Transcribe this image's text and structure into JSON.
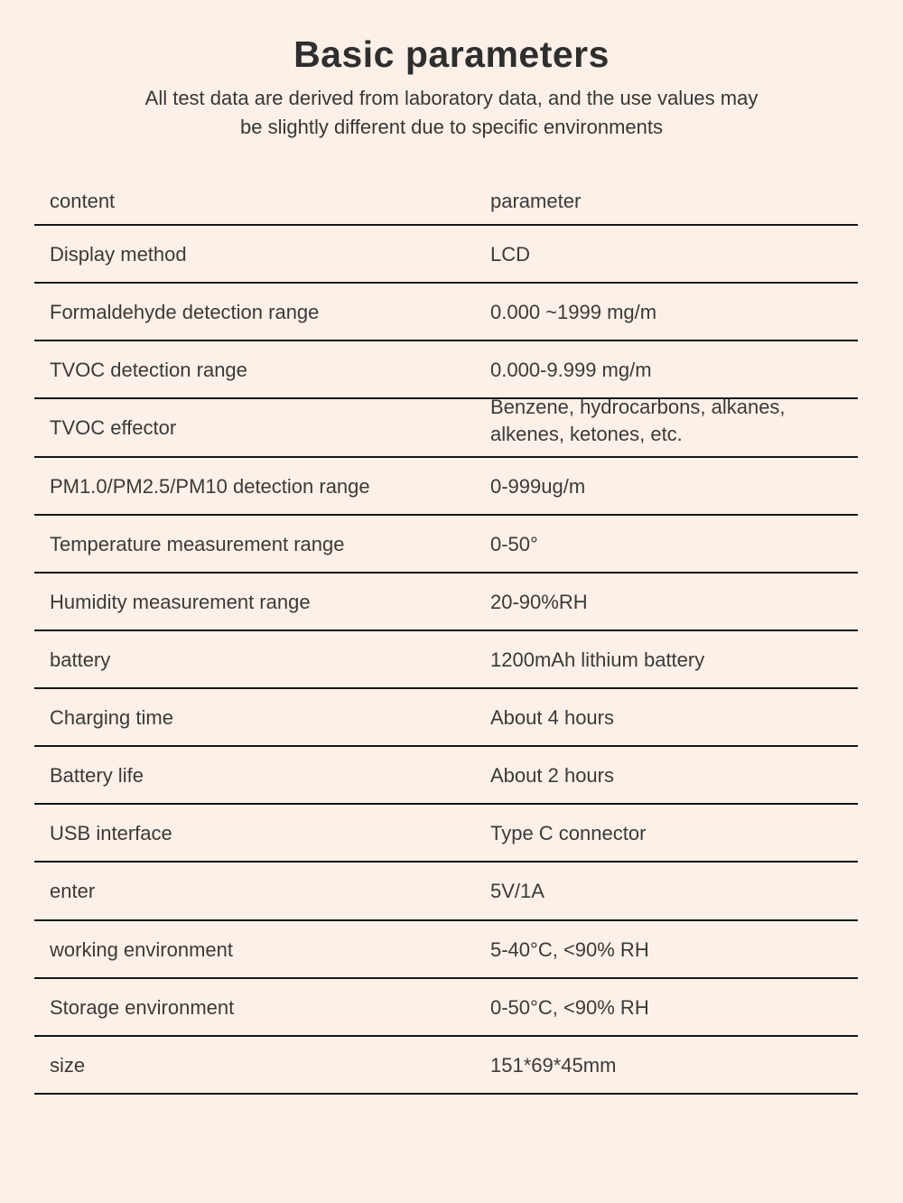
{
  "page": {
    "background_color": "#fdf0e8",
    "text_color": "#3a3a3a",
    "divider_color": "#161616"
  },
  "header": {
    "title": "Basic parameters",
    "subtitle_line1": "All test data are derived from laboratory data, and the use values may",
    "subtitle_line2": "be slightly different due to specific environments"
  },
  "table": {
    "header": {
      "label": "content",
      "value": "parameter"
    },
    "rows": [
      {
        "label": "Display method",
        "value": "LCD"
      },
      {
        "label": "Formaldehyde detection range",
        "value": "0.000 ~1999 mg/m"
      },
      {
        "label": "TVOC detection range",
        "value": "0.000-9.999 mg/m"
      },
      {
        "label": "TVOC effector",
        "value": "Benzene, hydrocarbons, alkanes,",
        "value2": "alkenes, ketones, etc."
      },
      {
        "label": "PM1.0/PM2.5/PM10 detection range",
        "value": "0-999ug/m"
      },
      {
        "label": "Temperature measurement range",
        "value": "0-50°"
      },
      {
        "label": "Humidity measurement range",
        "value": "20-90%RH"
      },
      {
        "label": "battery",
        "value": "1200mAh lithium battery"
      },
      {
        "label": "Charging time",
        "value": "About 4 hours"
      },
      {
        "label": "Battery life",
        "value": "About 2 hours"
      },
      {
        "label": "USB interface",
        "value": "Type C connector"
      },
      {
        "label": "enter",
        "value": "5V/1A"
      },
      {
        "label": "working environment",
        "value": "5-40°C, <90% RH"
      },
      {
        "label": "Storage environment",
        "value": "0-50°C, <90% RH"
      },
      {
        "label": "size",
        "value": "151*69*45mm"
      }
    ]
  }
}
